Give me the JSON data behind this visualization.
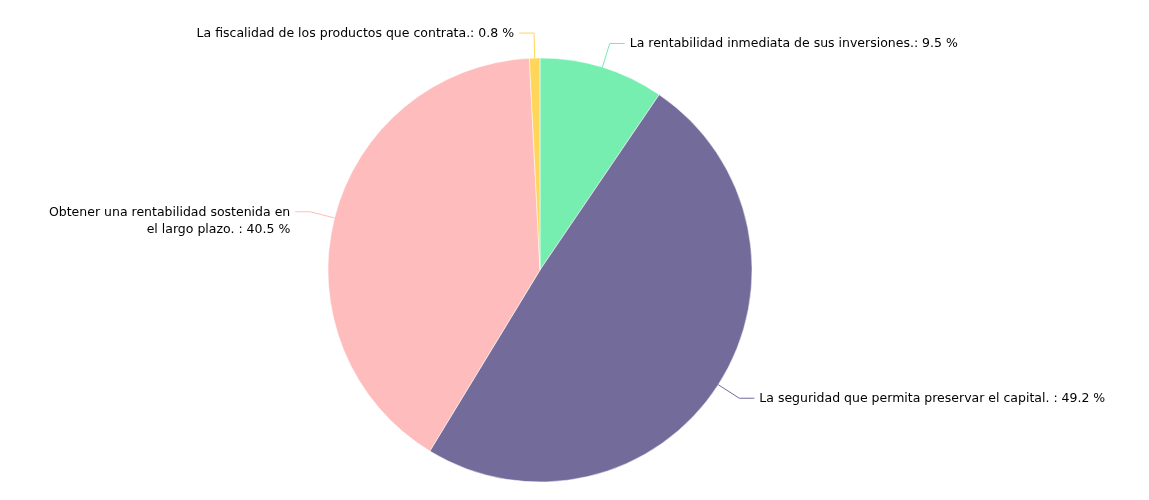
{
  "chart_data": {
    "type": "pie",
    "categories": [
      "La rentabilidad inmediata de sus inversiones.",
      "La seguridad que permita preservar el capital. ",
      "Obtener una rentabilidad sostenida en el largo plazo. ",
      "La fiscalidad de los productos que contrata."
    ],
    "values": [
      9.5,
      49.2,
      40.5,
      0.8
    ],
    "value_labels": [
      "9.5 %",
      "49.2 %",
      "40.5 %",
      "0.8 %"
    ],
    "colors": [
      "#76eeb0",
      "#736c9b",
      "#ffbcbc",
      "#ffd65a"
    ]
  }
}
